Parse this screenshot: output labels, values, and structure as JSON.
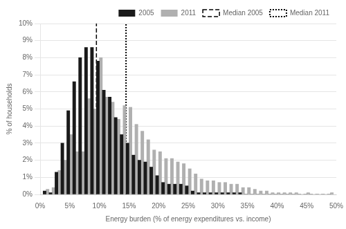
{
  "chart_data": {
    "type": "bar",
    "xlabel": "Energy burden (% of energy expenditures vs. income)",
    "ylabel": "% of households",
    "x": [
      1,
      2,
      3,
      4,
      5,
      6,
      7,
      8,
      9,
      10,
      11,
      12,
      13,
      14,
      15,
      16,
      17,
      18,
      19,
      20,
      21,
      22,
      23,
      24,
      25,
      26,
      27,
      28,
      29,
      30,
      31,
      32,
      33,
      34,
      35,
      36,
      37,
      38,
      39,
      40,
      41,
      42,
      43,
      44,
      45,
      46,
      47,
      48,
      49
    ],
    "series": [
      {
        "name": "2005",
        "color": "#1a1a1a",
        "values": [
          0.2,
          0.1,
          1.3,
          3.0,
          4.9,
          6.6,
          8.0,
          8.6,
          8.6,
          7.8,
          6.1,
          5.7,
          4.5,
          3.5,
          3.0,
          2.3,
          2.0,
          1.9,
          1.6,
          1.1,
          0.7,
          0.6,
          0.6,
          0.6,
          0.5,
          0.2,
          0.1,
          0.1,
          0.1,
          0.1,
          0.1,
          0.1,
          0.1,
          0.1,
          0.0,
          0.0,
          0.0,
          0.0,
          0.0,
          0.0,
          0.0,
          0.0,
          0.0,
          0.0,
          0.0,
          0.0,
          0.0,
          0.0,
          0.0
        ]
      },
      {
        "name": "2011",
        "color": "#b0b0b0",
        "values": [
          0.3,
          0.4,
          1.4,
          2.0,
          3.5,
          2.5,
          2.5,
          5.6,
          5.0,
          8.0,
          5.7,
          5.4,
          4.4,
          5.2,
          5.1,
          4.1,
          3.7,
          3.2,
          2.6,
          2.5,
          2.1,
          2.1,
          1.9,
          1.8,
          1.5,
          1.2,
          0.9,
          0.8,
          0.8,
          0.7,
          0.7,
          0.6,
          0.6,
          0.4,
          0.4,
          0.3,
          0.2,
          0.2,
          0.1,
          0.1,
          0.1,
          0.1,
          0.1,
          0.0,
          0.1,
          0.0,
          0.0,
          0.0,
          0.1
        ]
      }
    ],
    "vlines": [
      {
        "name": "Median 2005",
        "x": 9.5,
        "color": "#000000",
        "line_style": "dashed"
      },
      {
        "name": "Median 2011",
        "x": 14.5,
        "color": "#000000",
        "line_style": "dotted"
      }
    ],
    "xlim": [
      0,
      50
    ],
    "xticks": [
      {
        "value": 0,
        "label": "0%"
      },
      {
        "value": 5,
        "label": "5%"
      },
      {
        "value": 10,
        "label": "10%"
      },
      {
        "value": 15,
        "label": "15%"
      },
      {
        "value": 20,
        "label": "20%"
      },
      {
        "value": 25,
        "label": "25%"
      },
      {
        "value": 30,
        "label": "30%"
      },
      {
        "value": 35,
        "label": "35%"
      },
      {
        "value": 40,
        "label": "40%"
      },
      {
        "value": 45,
        "label": "45%"
      },
      {
        "value": 50,
        "label": "50%"
      }
    ],
    "ylim": [
      0,
      10
    ],
    "yticks": [
      {
        "value": 0,
        "label": "0%"
      },
      {
        "value": 1,
        "label": "1%"
      },
      {
        "value": 2,
        "label": "2%"
      },
      {
        "value": 3,
        "label": "3%"
      },
      {
        "value": 4,
        "label": "4%"
      },
      {
        "value": 5,
        "label": "5%"
      },
      {
        "value": 6,
        "label": "6%"
      },
      {
        "value": 7,
        "label": "7%"
      },
      {
        "value": 8,
        "label": "8%"
      },
      {
        "value": 9,
        "label": "9%"
      },
      {
        "value": 10,
        "label": "10%"
      }
    ],
    "grid": "y",
    "legend": "upper right"
  }
}
